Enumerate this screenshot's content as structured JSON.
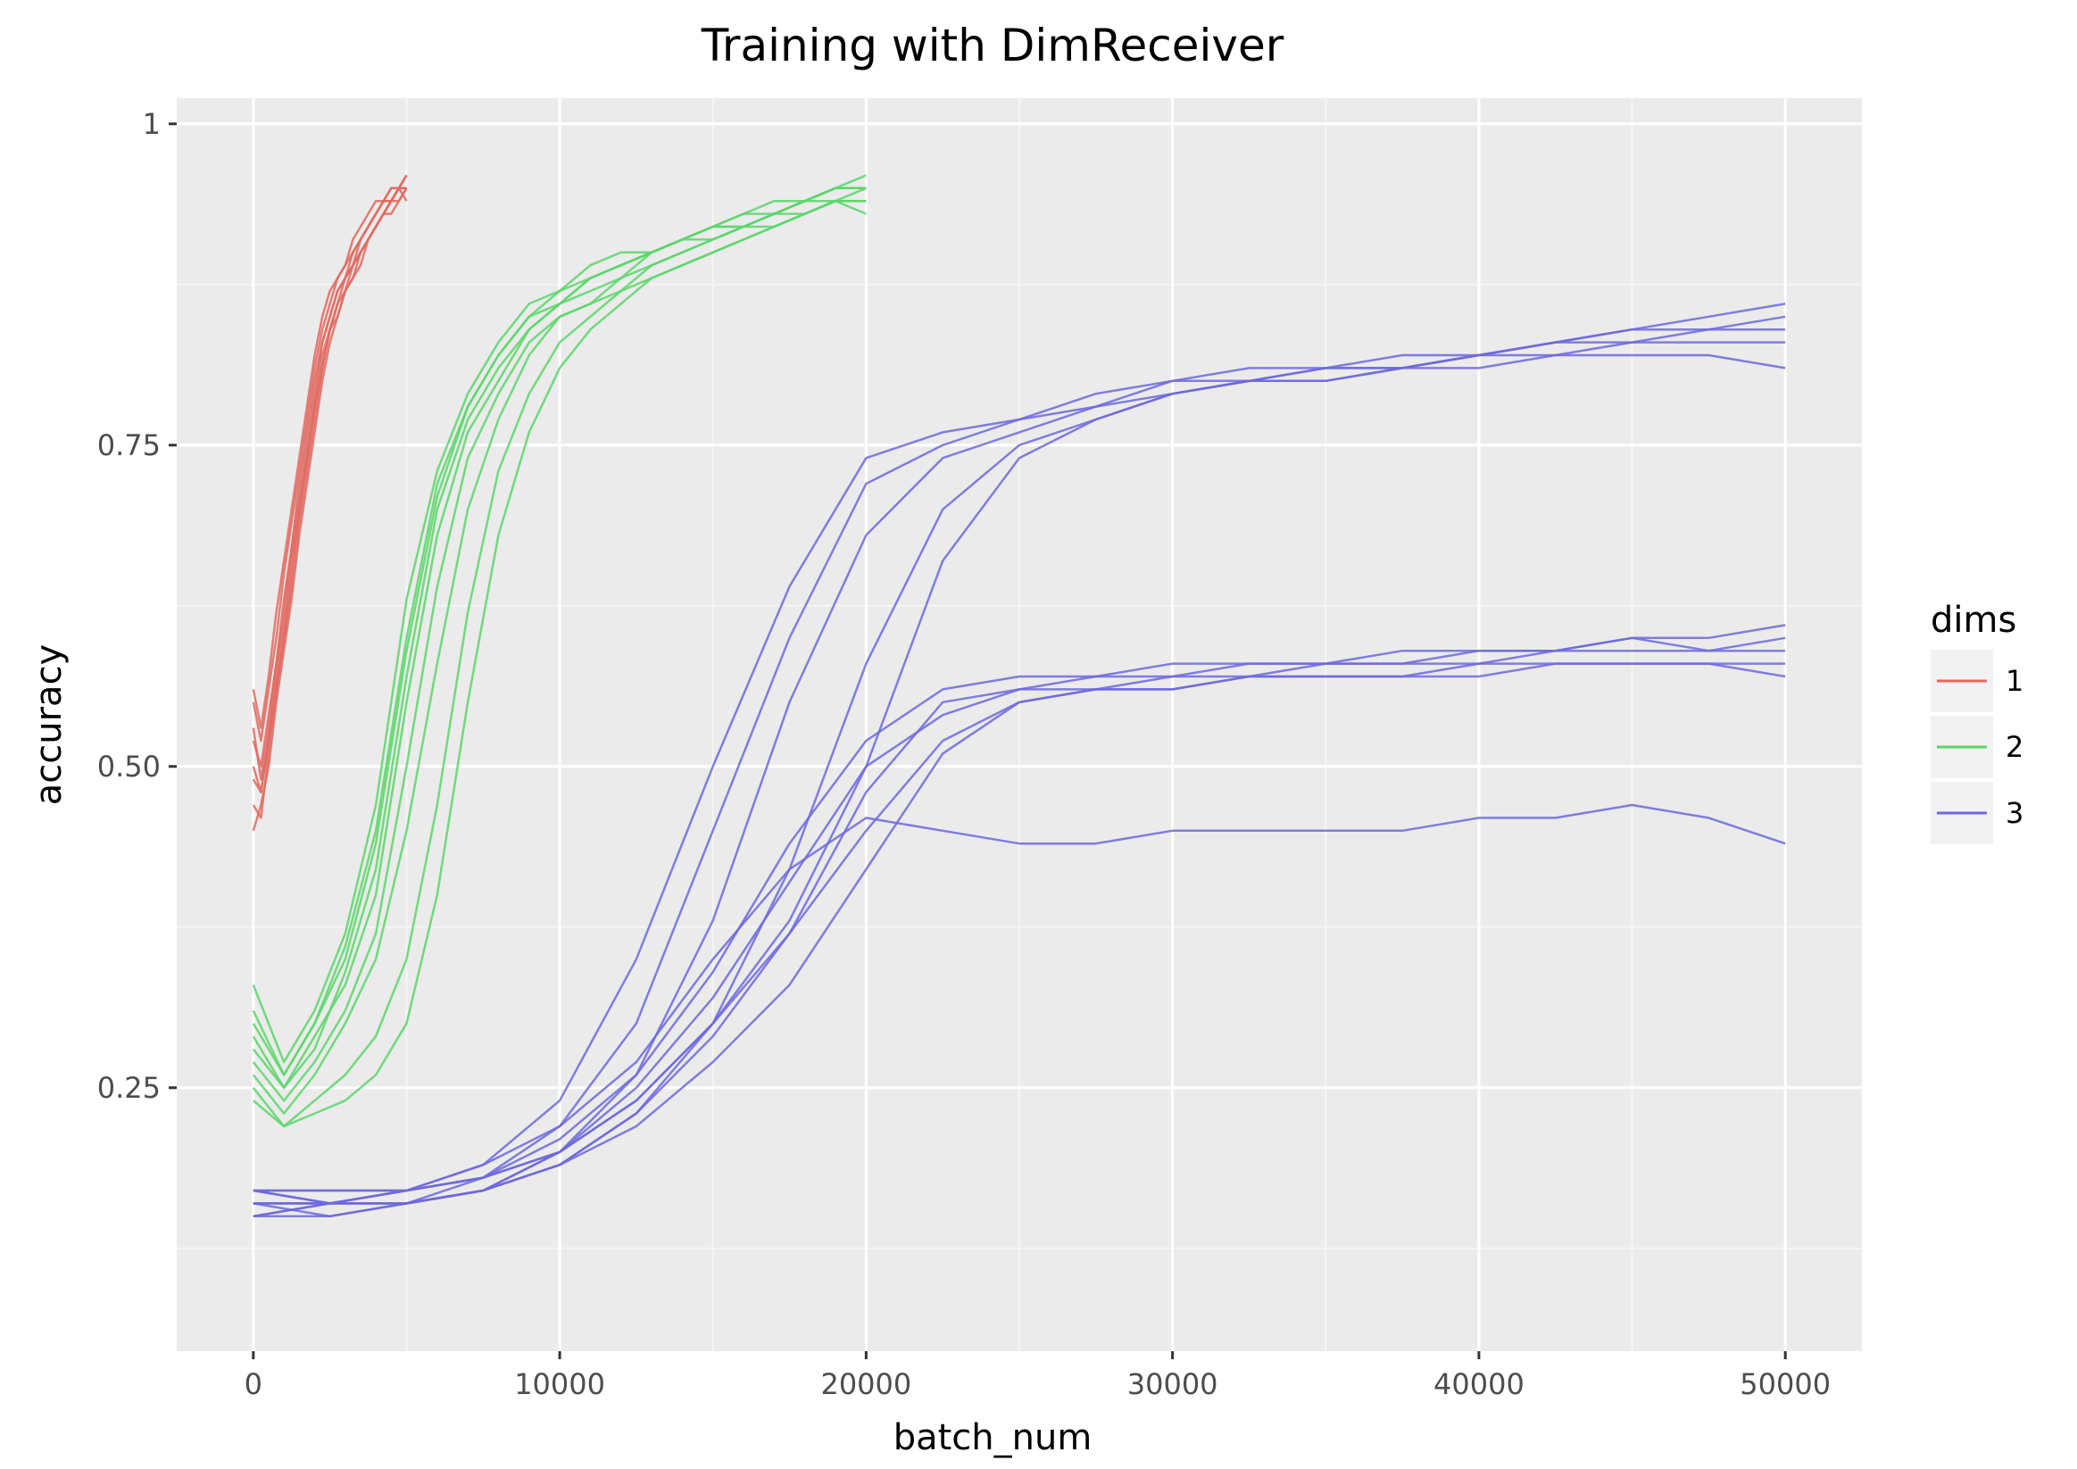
{
  "chart_data": {
    "type": "line",
    "title": "Training with DimReceiver",
    "xlabel": "batch_num",
    "ylabel": "accuracy",
    "xlim": [
      -2500,
      52500
    ],
    "ylim": [
      0.045,
      1.02
    ],
    "x_ticks": [
      0,
      10000,
      20000,
      30000,
      40000,
      50000
    ],
    "x_tick_labels": [
      "0",
      "10000",
      "20000",
      "30000",
      "40000",
      "50000"
    ],
    "y_ticks": [
      0.25,
      0.5,
      0.75,
      1.0
    ],
    "y_tick_labels": [
      "0.25",
      "0.50",
      "0.75",
      "1"
    ],
    "grid": true,
    "legend": {
      "title": "dims",
      "position": "right",
      "entries": [
        {
          "label": "1",
          "color": "#e06a60"
        },
        {
          "label": "2",
          "color": "#5ad66a"
        },
        {
          "label": "3",
          "color": "#6d68de"
        }
      ]
    },
    "groups": [
      {
        "dims": "1",
        "color": "#e06a60",
        "x": [
          0,
          250,
          500,
          750,
          1000,
          1250,
          1500,
          1750,
          2000,
          2250,
          2500,
          2750,
          3000,
          3250,
          3500,
          3750,
          4000,
          4250,
          4500,
          4750,
          5000
        ],
        "runs": [
          [
            0.53,
            0.49,
            0.53,
            0.58,
            0.63,
            0.67,
            0.71,
            0.75,
            0.79,
            0.83,
            0.85,
            0.87,
            0.88,
            0.9,
            0.91,
            0.92,
            0.93,
            0.94,
            0.94,
            0.95,
            0.95
          ],
          [
            0.47,
            0.46,
            0.51,
            0.56,
            0.6,
            0.64,
            0.69,
            0.73,
            0.77,
            0.81,
            0.84,
            0.85,
            0.87,
            0.89,
            0.9,
            0.91,
            0.92,
            0.93,
            0.94,
            0.95,
            0.96
          ],
          [
            0.55,
            0.52,
            0.56,
            0.6,
            0.65,
            0.69,
            0.73,
            0.77,
            0.81,
            0.84,
            0.86,
            0.88,
            0.89,
            0.9,
            0.91,
            0.92,
            0.93,
            0.94,
            0.95,
            0.95,
            0.96
          ],
          [
            0.5,
            0.48,
            0.52,
            0.57,
            0.61,
            0.66,
            0.7,
            0.74,
            0.78,
            0.82,
            0.84,
            0.86,
            0.88,
            0.89,
            0.9,
            0.91,
            0.92,
            0.93,
            0.94,
            0.95,
            0.95
          ],
          [
            0.52,
            0.5,
            0.54,
            0.58,
            0.62,
            0.67,
            0.72,
            0.76,
            0.8,
            0.83,
            0.85,
            0.87,
            0.88,
            0.89,
            0.91,
            0.92,
            0.93,
            0.94,
            0.94,
            0.95,
            0.95
          ],
          [
            0.45,
            0.47,
            0.5,
            0.55,
            0.59,
            0.63,
            0.68,
            0.72,
            0.76,
            0.8,
            0.83,
            0.85,
            0.87,
            0.88,
            0.89,
            0.91,
            0.92,
            0.93,
            0.94,
            0.94,
            0.95
          ],
          [
            0.56,
            0.53,
            0.57,
            0.62,
            0.66,
            0.7,
            0.74,
            0.78,
            0.82,
            0.85,
            0.87,
            0.88,
            0.89,
            0.91,
            0.92,
            0.93,
            0.94,
            0.94,
            0.95,
            0.95,
            0.94
          ],
          [
            0.49,
            0.48,
            0.52,
            0.56,
            0.6,
            0.65,
            0.7,
            0.74,
            0.78,
            0.81,
            0.84,
            0.86,
            0.87,
            0.88,
            0.9,
            0.91,
            0.92,
            0.93,
            0.93,
            0.94,
            0.95
          ]
        ]
      },
      {
        "dims": "2",
        "color": "#5ad66a",
        "x": [
          0,
          1000,
          2000,
          3000,
          4000,
          5000,
          6000,
          7000,
          8000,
          9000,
          10000,
          11000,
          12000,
          13000,
          14000,
          15000,
          16000,
          17000,
          18000,
          19000,
          20000
        ],
        "runs": [
          [
            0.3,
            0.26,
            0.3,
            0.36,
            0.45,
            0.6,
            0.72,
            0.78,
            0.82,
            0.85,
            0.87,
            0.88,
            0.89,
            0.9,
            0.91,
            0.92,
            0.92,
            0.93,
            0.94,
            0.94,
            0.95
          ],
          [
            0.28,
            0.25,
            0.29,
            0.33,
            0.4,
            0.55,
            0.68,
            0.76,
            0.8,
            0.84,
            0.86,
            0.87,
            0.88,
            0.9,
            0.91,
            0.91,
            0.92,
            0.93,
            0.94,
            0.95,
            0.95
          ],
          [
            0.33,
            0.27,
            0.31,
            0.37,
            0.47,
            0.63,
            0.73,
            0.79,
            0.83,
            0.86,
            0.87,
            0.89,
            0.9,
            0.9,
            0.91,
            0.92,
            0.93,
            0.94,
            0.94,
            0.95,
            0.96
          ],
          [
            0.27,
            0.24,
            0.27,
            0.31,
            0.37,
            0.5,
            0.64,
            0.74,
            0.79,
            0.83,
            0.85,
            0.86,
            0.88,
            0.89,
            0.9,
            0.91,
            0.92,
            0.93,
            0.93,
            0.94,
            0.94
          ],
          [
            0.29,
            0.25,
            0.28,
            0.34,
            0.42,
            0.57,
            0.7,
            0.77,
            0.81,
            0.84,
            0.86,
            0.88,
            0.89,
            0.9,
            0.91,
            0.92,
            0.92,
            0.93,
            0.94,
            0.95,
            0.95
          ],
          [
            0.26,
            0.23,
            0.26,
            0.3,
            0.35,
            0.45,
            0.58,
            0.7,
            0.77,
            0.82,
            0.85,
            0.86,
            0.87,
            0.89,
            0.9,
            0.91,
            0.92,
            0.92,
            0.93,
            0.94,
            0.94
          ],
          [
            0.25,
            0.22,
            0.24,
            0.26,
            0.29,
            0.35,
            0.47,
            0.62,
            0.73,
            0.79,
            0.83,
            0.85,
            0.87,
            0.88,
            0.89,
            0.9,
            0.91,
            0.92,
            0.93,
            0.94,
            0.94
          ],
          [
            0.31,
            0.26,
            0.3,
            0.35,
            0.44,
            0.59,
            0.71,
            0.78,
            0.82,
            0.85,
            0.86,
            0.88,
            0.89,
            0.9,
            0.91,
            0.92,
            0.93,
            0.93,
            0.94,
            0.95,
            0.95
          ],
          [
            0.24,
            0.22,
            0.23,
            0.24,
            0.26,
            0.3,
            0.4,
            0.55,
            0.68,
            0.76,
            0.81,
            0.84,
            0.86,
            0.88,
            0.89,
            0.9,
            0.91,
            0.92,
            0.93,
            0.94,
            0.93
          ]
        ]
      },
      {
        "dims": "3",
        "color": "#6d68de",
        "x": [
          0,
          2500,
          5000,
          7500,
          10000,
          12500,
          15000,
          17500,
          20000,
          22500,
          25000,
          27500,
          30000,
          32500,
          35000,
          37500,
          40000,
          42500,
          45000,
          47500,
          50000
        ],
        "runs": [
          [
            0.16,
            0.16,
            0.16,
            0.18,
            0.22,
            0.3,
            0.45,
            0.6,
            0.72,
            0.75,
            0.77,
            0.78,
            0.8,
            0.8,
            0.81,
            0.81,
            0.82,
            0.83,
            0.84,
            0.84,
            0.85
          ],
          [
            0.17,
            0.16,
            0.17,
            0.19,
            0.24,
            0.35,
            0.5,
            0.64,
            0.74,
            0.76,
            0.77,
            0.79,
            0.8,
            0.81,
            0.81,
            0.82,
            0.82,
            0.83,
            0.83,
            0.84,
            0.84
          ],
          [
            0.15,
            0.16,
            0.16,
            0.17,
            0.2,
            0.26,
            0.38,
            0.55,
            0.68,
            0.74,
            0.76,
            0.78,
            0.79,
            0.8,
            0.81,
            0.81,
            0.82,
            0.83,
            0.84,
            0.85,
            0.86
          ],
          [
            0.16,
            0.15,
            0.16,
            0.17,
            0.19,
            0.23,
            0.3,
            0.42,
            0.58,
            0.7,
            0.75,
            0.77,
            0.79,
            0.8,
            0.8,
            0.81,
            0.82,
            0.82,
            0.83,
            0.83,
            0.83
          ],
          [
            0.17,
            0.17,
            0.17,
            0.18,
            0.2,
            0.24,
            0.3,
            0.38,
            0.5,
            0.66,
            0.74,
            0.77,
            0.79,
            0.8,
            0.8,
            0.81,
            0.81,
            0.82,
            0.82,
            0.82,
            0.81
          ],
          [
            0.16,
            0.16,
            0.17,
            0.18,
            0.21,
            0.26,
            0.34,
            0.44,
            0.52,
            0.56,
            0.57,
            0.57,
            0.58,
            0.58,
            0.58,
            0.59,
            0.59,
            0.59,
            0.6,
            0.6,
            0.61
          ],
          [
            0.15,
            0.15,
            0.16,
            0.17,
            0.19,
            0.23,
            0.29,
            0.37,
            0.48,
            0.55,
            0.56,
            0.57,
            0.57,
            0.58,
            0.58,
            0.58,
            0.59,
            0.59,
            0.6,
            0.59,
            0.6
          ],
          [
            0.17,
            0.16,
            0.17,
            0.18,
            0.2,
            0.25,
            0.32,
            0.41,
            0.5,
            0.54,
            0.56,
            0.56,
            0.57,
            0.57,
            0.58,
            0.58,
            0.58,
            0.59,
            0.59,
            0.59,
            0.59
          ],
          [
            0.16,
            0.16,
            0.16,
            0.17,
            0.2,
            0.24,
            0.3,
            0.37,
            0.45,
            0.52,
            0.55,
            0.56,
            0.56,
            0.57,
            0.57,
            0.57,
            0.58,
            0.58,
            0.58,
            0.58,
            0.58
          ],
          [
            0.15,
            0.16,
            0.16,
            0.17,
            0.19,
            0.22,
            0.27,
            0.33,
            0.42,
            0.51,
            0.55,
            0.56,
            0.56,
            0.57,
            0.57,
            0.57,
            0.57,
            0.58,
            0.58,
            0.58,
            0.57
          ],
          [
            0.17,
            0.17,
            0.17,
            0.19,
            0.22,
            0.27,
            0.35,
            0.42,
            0.46,
            0.45,
            0.44,
            0.44,
            0.45,
            0.45,
            0.45,
            0.45,
            0.46,
            0.46,
            0.47,
            0.46,
            0.44
          ]
        ]
      }
    ]
  }
}
